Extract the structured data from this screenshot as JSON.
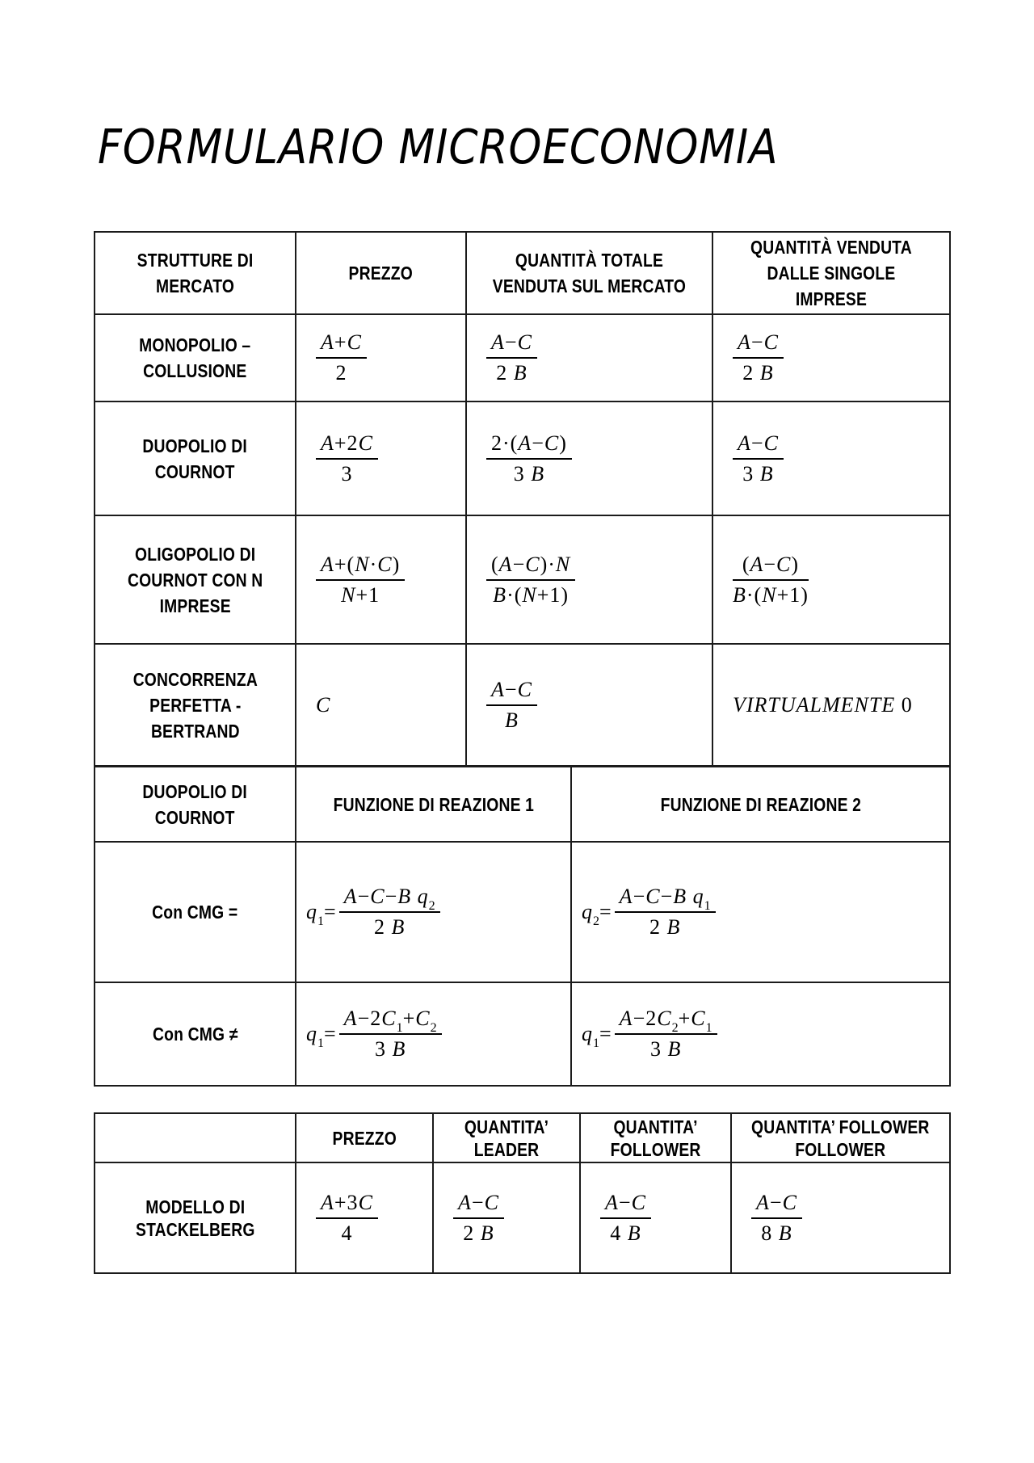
{
  "page": {
    "title": "FORMULARIO MICROECONOMIA"
  },
  "table1": {
    "headers": [
      "STRUTTURE DI\nMERCATO",
      "PREZZO",
      "QUANTITÀ TOTALE\nVENDUTA SUL MERCATO",
      "QUANTITÀ VENDUTA\nDALLE SINGOLE\nIMPRESE"
    ],
    "rows": [
      {
        "label": "MONOPOLIO –\nCOLLUSIONE",
        "cells": [
          {
            "num": "A+C",
            "den": "2"
          },
          {
            "num": "A−C",
            "den": "2 B"
          },
          {
            "num": "A−C",
            "den": "2 B"
          }
        ]
      },
      {
        "label": "DUOPOLIO DI\nCOURNOT",
        "cells": [
          {
            "num": "A+2C",
            "den": "3"
          },
          {
            "num": "2·(A−C)",
            "den": "3 B"
          },
          {
            "num": "A−C",
            "den": "3 B"
          }
        ]
      },
      {
        "label": "OLIGOPOLIO DI\nCOURNOT CON N\nIMPRESE",
        "cells": [
          {
            "num": "A+(N·C)",
            "den": "N+1"
          },
          {
            "num": "(A−C)·N",
            "den": "B·(N+1)"
          },
          {
            "num": "(A−C)",
            "den": "B·(N+1)"
          }
        ]
      },
      {
        "label": "CONCORRENZA\nPERFETTA -\nBERTRAND",
        "cells": [
          {
            "text": "C"
          },
          {
            "num": "A−C",
            "den": "B"
          },
          {
            "text": "VIRTUALMENTE 0"
          }
        ]
      }
    ]
  },
  "table2": {
    "headers": [
      "DUOPOLIO DI\nCOURNOT",
      "FUNZIONE DI REAZIONE 1",
      "FUNZIONE DI REAZIONE 2"
    ],
    "rows": [
      {
        "label": "Con CMG =",
        "cells": [
          {
            "pre": "q_1_=",
            "num": "A−C−B q_2_",
            "den": "2 B"
          },
          {
            "pre": "q_2_=",
            "num": "A−C−B q_1_",
            "den": "2 B"
          }
        ]
      },
      {
        "label": "Con CMG ≠",
        "cells": [
          {
            "pre": "q_1_=",
            "num": "A−2C_1_+C_2_",
            "den": "3 B"
          },
          {
            "pre": "q_1_=",
            "num": "A−2C_2_+C_1_",
            "den": "3 B"
          }
        ]
      }
    ]
  },
  "table3": {
    "headers": [
      "",
      "PREZZO",
      "QUANTITA’\nLEADER",
      "QUANTITA’\nFOLLOWER",
      "QUANTITA’ FOLLOWER\nFOLLOWER"
    ],
    "rows": [
      {
        "label": "MODELLO DI\nSTACKELBERG",
        "cells": [
          {
            "num": "A+3C",
            "den": "4"
          },
          {
            "num": "A−C",
            "den": "2 B"
          },
          {
            "num": "A−C",
            "den": "4 B"
          },
          {
            "num": "A−C",
            "den": "8 B"
          }
        ]
      }
    ]
  }
}
